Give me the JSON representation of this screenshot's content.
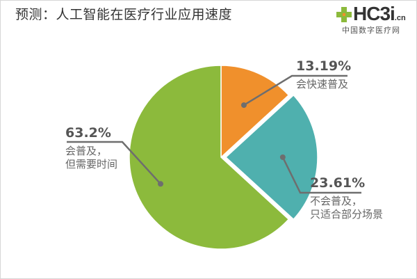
{
  "title": "预测：人工智能在医疗行业应用速度",
  "logo": {
    "brand": "HC3i",
    "brand_suffix": ".cn",
    "subtitle": "中国数字医疗网"
  },
  "chart_data": {
    "type": "pie",
    "slices": [
      {
        "percent": "13.19%",
        "value": 13.19,
        "lines": [
          "会快速普及"
        ],
        "color": "#f0902c"
      },
      {
        "percent": "23.61%",
        "value": 23.61,
        "lines": [
          "不会普及，",
          "只适合部分场景"
        ],
        "color": "#4fb0ae"
      },
      {
        "percent": "63.2%",
        "value": 63.2,
        "lines": [
          "会普及，",
          "但需要时间"
        ],
        "color": "#8cba3c"
      }
    ]
  }
}
